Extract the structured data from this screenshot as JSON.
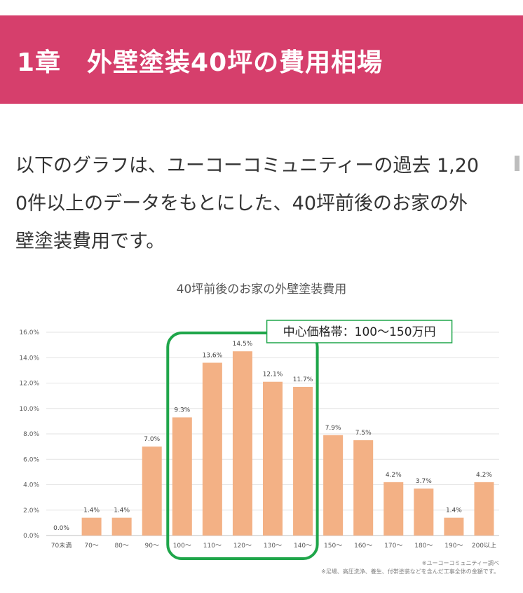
{
  "header": {
    "title": "1章　外壁塗装40坪の費用相場",
    "bg_color": "#d63f6c"
  },
  "intro": {
    "line1": "以下のグラフは、ユーコーコミュニティーの過去 1,20",
    "line2": "0件以上のデータをもとにした、40坪前後のお家の外",
    "line3": "壁塗装費用です。"
  },
  "chart_data": {
    "type": "bar",
    "title": "40坪前後のお家の外壁塗装費用",
    "categories": [
      "70未満",
      "70～",
      "80～",
      "90～",
      "100～",
      "110～",
      "120～",
      "130～",
      "140～",
      "150～",
      "160～",
      "170～",
      "180～",
      "190～",
      "200以上"
    ],
    "values": [
      0.0,
      1.4,
      1.4,
      7.0,
      9.3,
      13.6,
      14.5,
      12.1,
      11.7,
      7.9,
      7.5,
      4.2,
      3.7,
      1.4,
      4.2
    ],
    "value_labels": [
      "0.0%",
      "1.4%",
      "1.4%",
      "7.0%",
      "9.3%",
      "13.6%",
      "14.5%",
      "12.1%",
      "11.7%",
      "7.9%",
      "7.5%",
      "4.2%",
      "3.7%",
      "1.4%",
      "4.2%"
    ],
    "yticks": [
      "0.0%",
      "2.0%",
      "4.0%",
      "6.0%",
      "8.0%",
      "10.0%",
      "12.0%",
      "14.0%",
      "16.0%"
    ],
    "ylim": [
      0,
      16
    ],
    "grid": true,
    "bar_color": "#f3b185",
    "highlight": {
      "label": "中心価格帯：100～150万円",
      "categories": [
        "100～",
        "110～",
        "120～",
        "130～",
        "140～"
      ],
      "color": "#1fa64a"
    },
    "notes": [
      "※ユーコーコミュニティー調べ",
      "※足場、高圧洗浄、養生、付帯塗装などを含んだ工事全体の金額です。"
    ]
  }
}
